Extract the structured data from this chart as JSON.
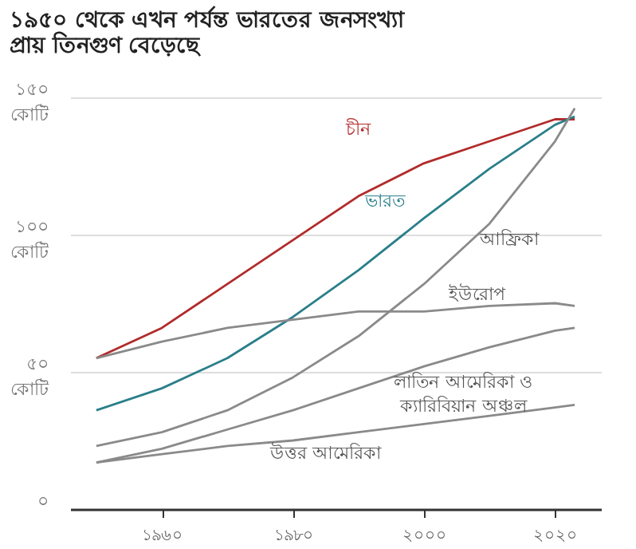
{
  "chart_data": {
    "type": "line",
    "title": "১৯৫০ থেকে এখন পর্যন্ত ভারতের জনসংখ্যা প্রায় তিনগুণ বেড়েছে",
    "x": [
      1950,
      1960,
      1970,
      1980,
      1990,
      2000,
      2010,
      2020,
      2023
    ],
    "series": [
      {
        "name": "চীন",
        "color": "#b22b2b",
        "values": [
          55,
          66,
          82,
          98,
          114,
          126,
          134,
          142,
          142
        ]
      },
      {
        "name": "ভারত",
        "color": "#2a7f8a",
        "values": [
          36,
          44,
          55,
          70,
          87,
          106,
          124,
          140,
          143
        ]
      },
      {
        "name": "আফ্রিকা",
        "color": "#8a8a8a",
        "values": [
          23,
          28,
          36,
          48,
          63,
          82,
          104,
          134,
          146
        ]
      },
      {
        "name": "ইউরোপ",
        "color": "#8a8a8a",
        "values": [
          55,
          61,
          66,
          69,
          72,
          72,
          74,
          75,
          74
        ]
      },
      {
        "name": "লাতিন আমেরিকা ও ক্যারিবিয়ান অঞ্চল",
        "color": "#8a8a8a",
        "values": [
          17,
          22,
          29,
          36,
          44,
          52,
          59,
          65,
          66
        ]
      },
      {
        "name": "উত্তর আমেরিকা",
        "color": "#8a8a8a",
        "values": [
          17,
          20,
          23,
          25,
          28,
          31,
          34,
          37,
          38
        ]
      }
    ],
    "xlim": [
      1946,
      2027
    ],
    "xticks": [
      {
        "value": 1960,
        "label": "১৯৬০"
      },
      {
        "value": 1980,
        "label": "১৯৮০"
      },
      {
        "value": 2000,
        "label": "২০০০"
      },
      {
        "value": 2020,
        "label": "২০২০"
      }
    ],
    "ylim": [
      0,
      150
    ],
    "yticks": [
      {
        "value": 0,
        "label": "০"
      },
      {
        "value": 50,
        "label": "৫০ কোটি"
      },
      {
        "value": 100,
        "label": "১০০ কোটি"
      },
      {
        "value": 150,
        "label": "১৫০ কোটি"
      }
    ],
    "grid": "y",
    "legend": false,
    "marker": "none",
    "line_style": "solid"
  }
}
